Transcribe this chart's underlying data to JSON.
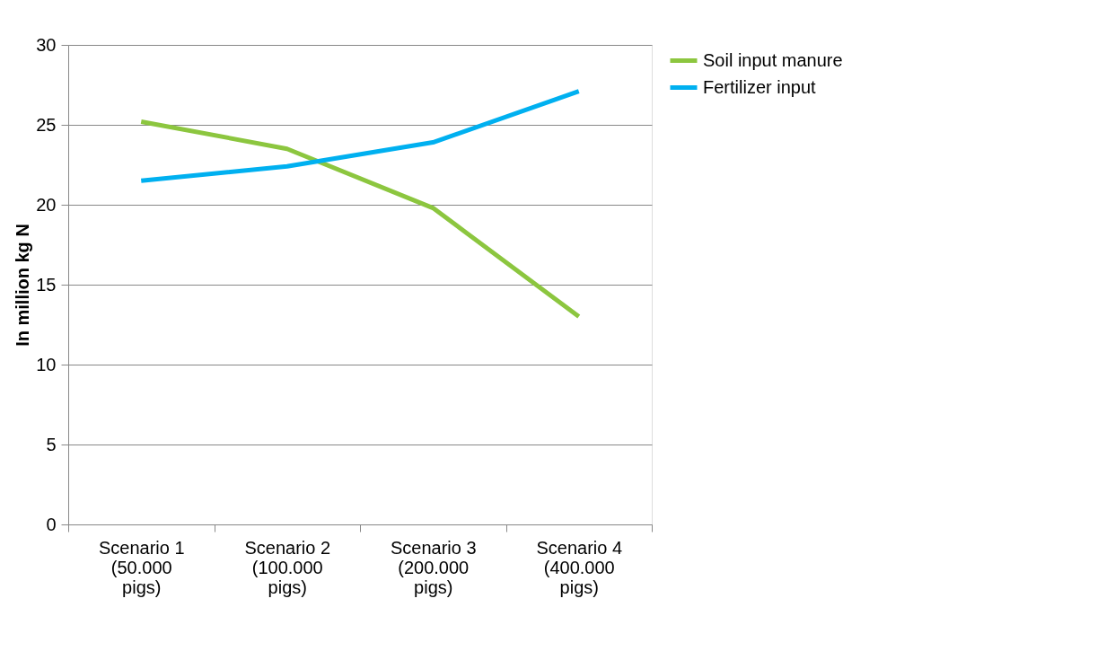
{
  "chart_data": {
    "type": "line",
    "ylabel": "In million kg N",
    "categories": [
      "Scenario 1\n(50.000\npigs)",
      "Scenario 2\n(100.000\npigs)",
      "Scenario 3\n(200.000\npigs)",
      "Scenario 4\n(400.000\npigs)"
    ],
    "series": [
      {
        "name": "Soil  input manure",
        "color": "#8cc63f",
        "values": [
          25.2,
          23.5,
          19.8,
          13.0
        ]
      },
      {
        "name": "Fertilizer input",
        "color": "#00b0f0",
        "values": [
          21.5,
          22.4,
          23.9,
          27.1
        ]
      }
    ],
    "ylim": [
      0,
      30
    ],
    "yticks": [
      0,
      5,
      10,
      15,
      20,
      25,
      30
    ],
    "grid": "y",
    "legend": "right",
    "marker": "none",
    "line_style": "solid"
  }
}
